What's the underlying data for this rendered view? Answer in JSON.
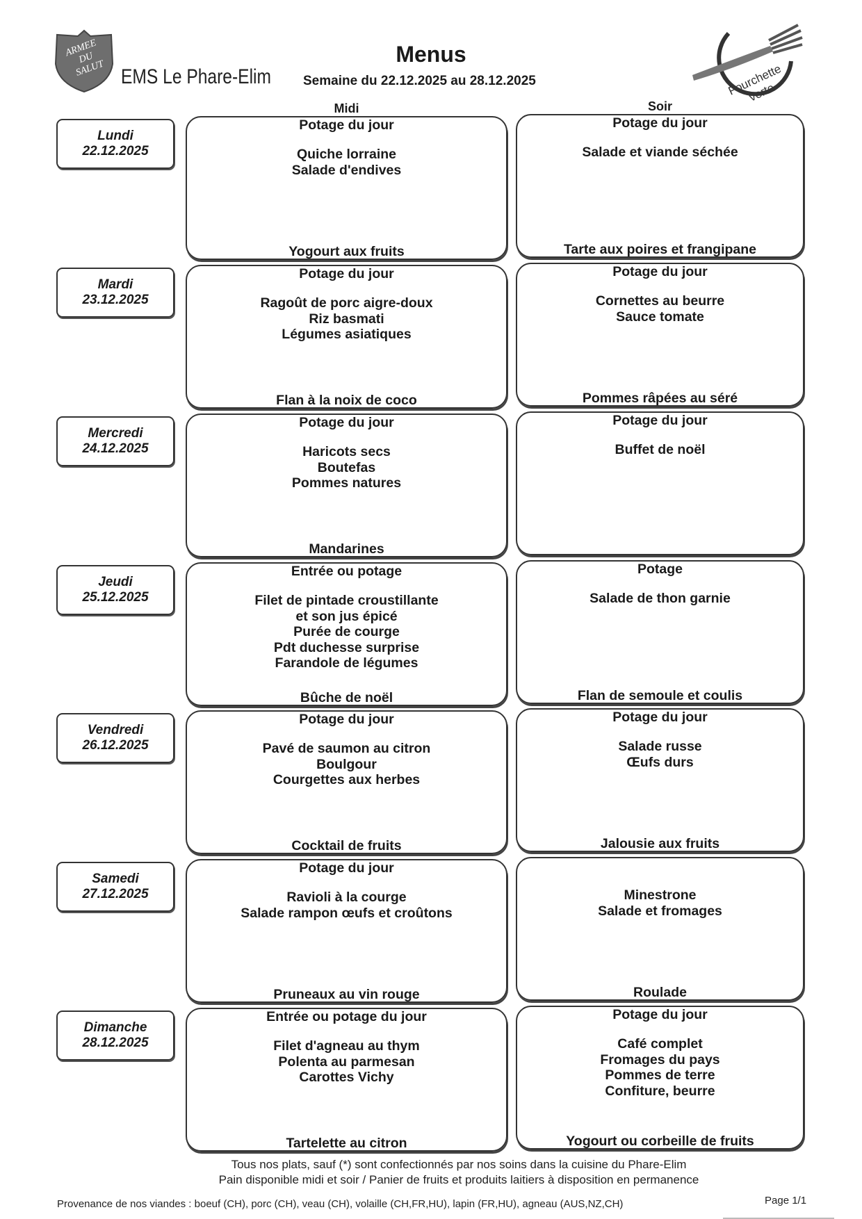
{
  "header": {
    "organization": "EMS Le Phare-Elim",
    "title": "Menus",
    "week": "Semaine du 22.12.2025 au 28.12.2025",
    "logo_left_text": "ARMEE DU SALUT",
    "logo_right_text": "Fourchette verte"
  },
  "columns": {
    "midi": "Midi",
    "soir": "Soir"
  },
  "days": [
    {
      "name": "Lundi",
      "date": "22.12.2025",
      "midi": {
        "first": "Potage du jour",
        "mains": [
          "Quiche lorraine",
          "Salade d'endives"
        ],
        "dessert": "Yogourt aux fruits"
      },
      "soir": {
        "first": "Potage du jour",
        "mains": [
          "Salade et viande séchée"
        ],
        "dessert": "Tarte aux poires et frangipane"
      }
    },
    {
      "name": "Mardi",
      "date": "23.12.2025",
      "midi": {
        "first": "Potage du jour",
        "mains": [
          "Ragoût de porc aigre-doux",
          "Riz basmati",
          "Légumes asiatiques"
        ],
        "dessert": "Flan à la noix de coco"
      },
      "soir": {
        "first": "Potage du jour",
        "mains": [
          "Cornettes au beurre",
          "Sauce tomate"
        ],
        "dessert": "Pommes râpées au séré"
      }
    },
    {
      "name": "Mercredi",
      "date": "24.12.2025",
      "midi": {
        "first": "Potage du jour",
        "mains": [
          "Haricots secs",
          "Boutefas",
          "Pommes natures"
        ],
        "dessert": "Mandarines"
      },
      "soir": {
        "first": "Potage du jour",
        "mains": [
          "Buffet de noël"
        ],
        "dessert": ""
      }
    },
    {
      "name": "Jeudi",
      "date": "25.12.2025",
      "midi": {
        "first": "Entrée ou potage",
        "mains": [
          "Filet de pintade croustillante",
          "et son jus épicé",
          "Purée de courge",
          "Pdt duchesse surprise",
          "Farandole de légumes"
        ],
        "dessert": "Bûche de noël"
      },
      "soir": {
        "first": "Potage",
        "mains": [
          "Salade de thon garnie"
        ],
        "dessert": "Flan de semoule et coulis"
      }
    },
    {
      "name": "Vendredi",
      "date": "26.12.2025",
      "midi": {
        "first": "Potage du jour",
        "mains": [
          "Pavé de saumon au citron",
          "Boulgour",
          "Courgettes aux herbes"
        ],
        "dessert": "Cocktail de fruits"
      },
      "soir": {
        "first": "Potage du jour",
        "mains": [
          "Salade russe",
          "Œufs durs"
        ],
        "dessert": "Jalousie aux fruits"
      }
    },
    {
      "name": "Samedi",
      "date": "27.12.2025",
      "midi": {
        "first": "Potage du jour",
        "mains": [
          "Ravioli à la courge",
          "Salade rampon œufs et croûtons"
        ],
        "dessert": "Pruneaux au vin rouge"
      },
      "soir": {
        "first": "",
        "mains": [
          "Minestrone",
          "Salade et fromages"
        ],
        "dessert": "Roulade"
      }
    },
    {
      "name": "Dimanche",
      "date": "28.12.2025",
      "midi": {
        "first": "Entrée ou potage du jour",
        "mains": [
          "Filet d'agneau au thym",
          "Polenta au parmesan",
          "Carottes Vichy"
        ],
        "dessert": "Tartelette au citron"
      },
      "soir": {
        "first": "Potage du jour",
        "mains": [
          "Café complet",
          "Fromages du pays",
          "Pommes de terre",
          "Confiture, beurre"
        ],
        "dessert": "Yogourt ou corbeille de fruits"
      }
    }
  ],
  "footer": {
    "line1": "Tous nos plats, sauf (*) sont confectionnés par nos soins dans la cuisine du Phare-Elim",
    "line2": "Pain disponible midi et soir / Panier de fruits et produits laitiers à disposition en permanence",
    "provenance": "Provenance de nos viandes : boeuf (CH), porc (CH), veau (CH), volaille (CH,FR,HU), lapin (FR,HU), agneau (AUS,NZ,CH)",
    "page": "Page 1/1"
  }
}
